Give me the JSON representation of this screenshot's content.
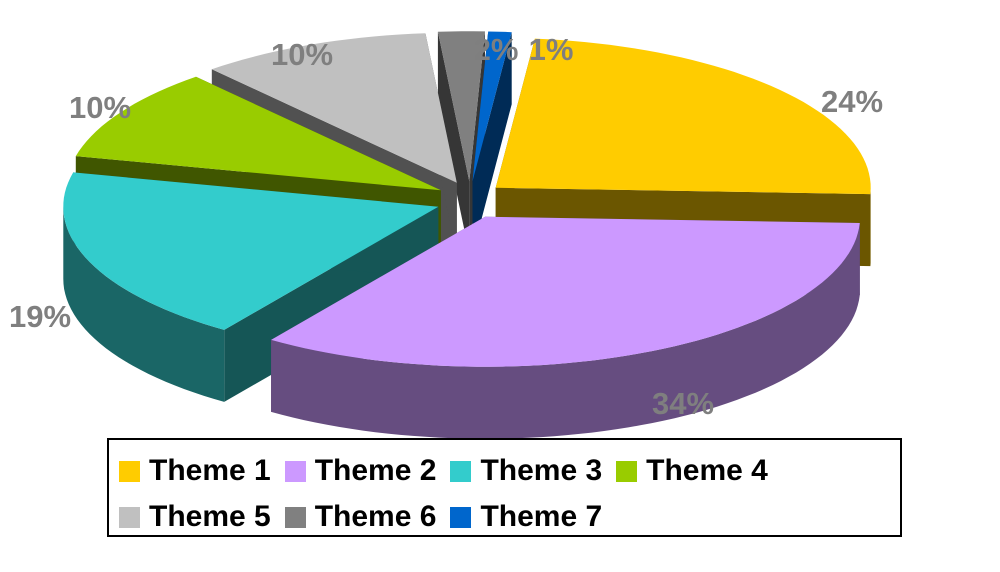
{
  "chart_data": {
    "type": "pie",
    "style": "3d-exploded",
    "categories": [
      "Theme 1",
      "Theme 2",
      "Theme 3",
      "Theme 4",
      "Theme 5",
      "Theme 6",
      "Theme 7"
    ],
    "values": [
      24,
      34,
      19,
      10,
      10,
      2,
      1
    ],
    "value_labels": [
      "24%",
      "34%",
      "19%",
      "10%",
      "10%",
      "2%",
      "1%"
    ],
    "colors": [
      "#ffcc00",
      "#cc99ff",
      "#33cccc",
      "#99cc00",
      "#c0c0c0",
      "#808080",
      "#0066cc"
    ],
    "title": "",
    "legend_placement": "bottom"
  }
}
